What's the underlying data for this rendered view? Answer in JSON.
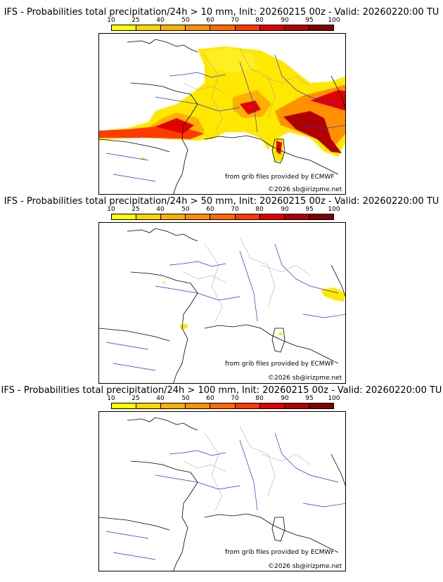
{
  "colorbar": {
    "ticks": [
      "10",
      "25",
      "40",
      "50",
      "60",
      "70",
      "80",
      "90",
      "95",
      "100"
    ],
    "colors": [
      "#ffff00",
      "#ffd700",
      "#ffb000",
      "#ff9000",
      "#ff6a00",
      "#ff3a00",
      "#e00000",
      "#b00000",
      "#800000"
    ]
  },
  "panels": [
    {
      "title": "IFS - Probabilities total precipitation/24h > 10 mm, Init: 20260215 00z - Valid: 20260220:00 TU",
      "credit_source": "from grib files provided by ECMWF",
      "credit_copyright": "©2026 sb@irizpme.net"
    },
    {
      "title": "IFS - Probabilities total precipitation/24h > 50 mm, Init: 20260215 00z - Valid: 20260220:00 TU",
      "credit_source": "from grib files provided by ECMWF",
      "credit_copyright": "©2026 sb@irizpme.net"
    },
    {
      "title": "IFS - Probabilities total precipitation/24h > 100 mm, Init: 20260215 00z - Valid: 20260220:00 TU",
      "credit_source": "from grib files provided by ECMWF",
      "credit_copyright": "©2026 sb@irizpme.net"
    }
  ]
}
